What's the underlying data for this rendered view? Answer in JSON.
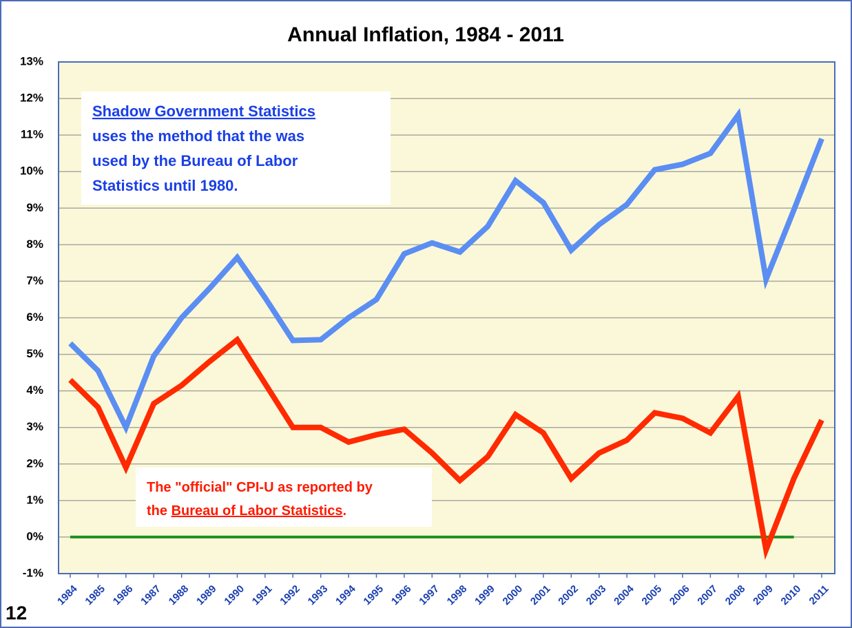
{
  "chart_data": {
    "type": "line",
    "title": "Annual Inflation, 1984 - 2011",
    "categories": [
      "1984",
      "1985",
      "1986",
      "1987",
      "1988",
      "1989",
      "1990",
      "1991",
      "1992",
      "1993",
      "1994",
      "1995",
      "1996",
      "1997",
      "1998",
      "1999",
      "2000",
      "2001",
      "2002",
      "2003",
      "2004",
      "2005",
      "2006",
      "2007",
      "2008",
      "2009",
      "2010",
      "2011"
    ],
    "series": [
      {
        "name": "Shadow Government Statistics",
        "color": "#5b8ef2",
        "values": [
          5.3,
          4.55,
          3.0,
          4.95,
          6.0,
          6.8,
          7.65,
          6.55,
          5.38,
          5.4,
          6.0,
          6.5,
          7.75,
          8.05,
          7.8,
          8.5,
          9.75,
          9.15,
          7.85,
          8.55,
          9.1,
          10.05,
          10.2,
          10.5,
          11.55,
          7.05,
          8.95,
          10.9
        ]
      },
      {
        "name": "CPI-U",
        "color": "#ff2a00",
        "values": [
          4.3,
          3.55,
          1.9,
          3.65,
          4.15,
          4.8,
          5.4,
          4.2,
          3.0,
          3.0,
          2.6,
          2.8,
          2.95,
          2.3,
          1.55,
          2.2,
          3.35,
          2.85,
          1.6,
          2.3,
          2.65,
          3.4,
          3.25,
          2.85,
          3.85,
          -0.35,
          1.6,
          3.2
        ]
      }
    ],
    "reference_line": {
      "value": 0,
      "color": "#1f8f1f",
      "x": [
        "1984",
        "2010"
      ]
    },
    "ylim": [
      -1,
      13
    ],
    "yticks": [
      {
        "value": -1,
        "label": "-1%"
      },
      {
        "value": 0,
        "label": "0%"
      },
      {
        "value": 1,
        "label": "1%"
      },
      {
        "value": 2,
        "label": "2%"
      },
      {
        "value": 3,
        "label": "3%"
      },
      {
        "value": 4,
        "label": "4%"
      },
      {
        "value": 5,
        "label": "5%"
      },
      {
        "value": 6,
        "label": "6%"
      },
      {
        "value": 7,
        "label": "7%"
      },
      {
        "value": 8,
        "label": "8%"
      },
      {
        "value": 9,
        "label": "9%"
      },
      {
        "value": 10,
        "label": "10%"
      },
      {
        "value": 11,
        "label": "11%"
      },
      {
        "value": 12,
        "label": "12%"
      },
      {
        "value": 13,
        "label": "13%"
      }
    ],
    "grid": true,
    "annotations": [
      {
        "color": "#1a3fe6",
        "lines": [
          [
            "Shadow Government Statistics"
          ],
          [
            "uses the method that the was"
          ],
          [
            "used by the Bureau of Labor"
          ],
          [
            "Statistics until 1980."
          ]
        ],
        "underlined": [
          "Shadow Government Statistics"
        ]
      },
      {
        "color": "#ff1a00",
        "lines": [
          [
            "The \"official\" CPI-U as reported by"
          ],
          [
            "the ",
            "Bureau of Labor Statistics",
            "."
          ]
        ],
        "underlined": [
          "Bureau of Labor Statistics"
        ]
      }
    ],
    "page_number": "12"
  }
}
